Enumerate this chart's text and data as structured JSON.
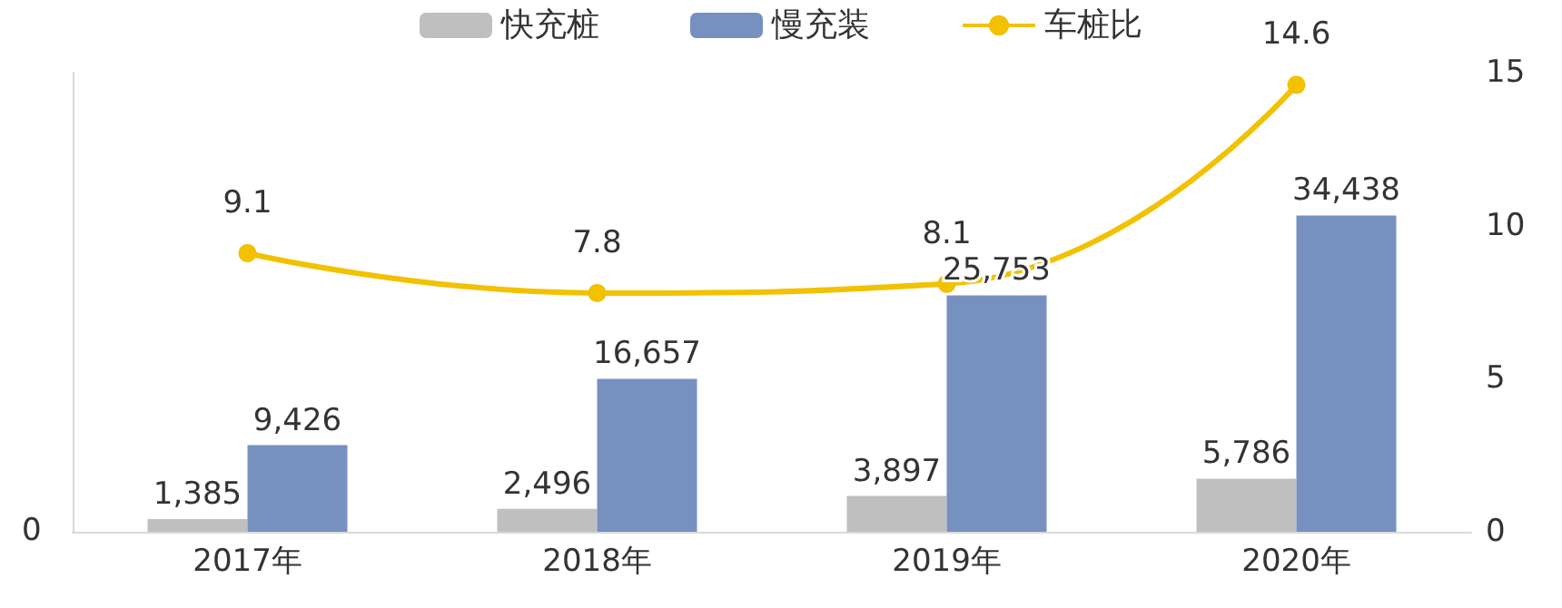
{
  "chart_data": {
    "type": "bar",
    "categories": [
      "2017年",
      "2018年",
      "2019年",
      "2020年"
    ],
    "series": [
      {
        "name": "快充桩",
        "color": "#bfbfbf",
        "values": [
          1385,
          2496,
          3897,
          5786
        ],
        "value_labels": [
          "1,385",
          "2,496",
          "3,897",
          "5,786"
        ]
      },
      {
        "name": "慢充装",
        "color": "#7690c0",
        "values": [
          9426,
          16657,
          25753,
          34438
        ],
        "value_labels": [
          "9,426",
          "16,657",
          "25,753",
          "34,438"
        ]
      },
      {
        "name": "车桩比",
        "type": "line",
        "axis": "y2",
        "color": "#f2c100",
        "values": [
          9.1,
          7.8,
          8.1,
          14.6
        ]
      }
    ],
    "ylim": [
      0,
      50000
    ],
    "annotations": [
      "0"
    ],
    "y2lim": [
      0,
      15
    ],
    "y2ticks": [
      0,
      5,
      10,
      15
    ],
    "data_labels": true,
    "legend": "top",
    "grid": false,
    "marker": "circle",
    "line_style": "solid"
  }
}
